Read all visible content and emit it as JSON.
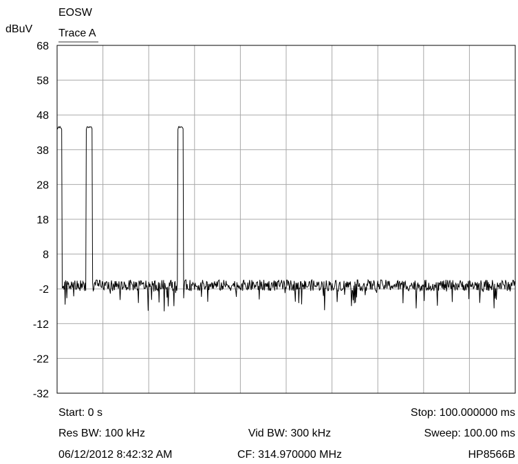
{
  "chart_data": {
    "type": "line",
    "title": "EOSW",
    "legend": "Trace A",
    "ylabel": "dBuV",
    "xunit": "ms",
    "xlim": [
      0,
      100
    ],
    "ylim": [
      -32,
      68
    ],
    "yticks": [
      68,
      58,
      48,
      38,
      28,
      18,
      8,
      -2,
      -12,
      -22,
      -32
    ],
    "x_divisions": 10,
    "grid": true,
    "noise_floor_dbuv": -1,
    "pulses": [
      {
        "start_ms": 0.0,
        "stop_ms": 1.0,
        "peak_dbuv": 44.5
      },
      {
        "start_ms": 6.3,
        "stop_ms": 7.7,
        "peak_dbuv": 44.5
      },
      {
        "start_ms": 26.3,
        "stop_ms": 27.6,
        "peak_dbuv": 44.5
      }
    ],
    "series": [
      {
        "values": []
      }
    ],
    "footer": {
      "start": "Start: 0 s",
      "stop": "Stop: 100.000000 ms",
      "res_bw": "Res BW: 100 kHz",
      "vid_bw": "Vid BW: 300 kHz",
      "sweep": "Sweep: 100.00 ms",
      "datetime": "06/12/2012 8:42:32 AM",
      "cf": "CF: 314.970000 MHz",
      "instrument": "HP8566B"
    }
  }
}
